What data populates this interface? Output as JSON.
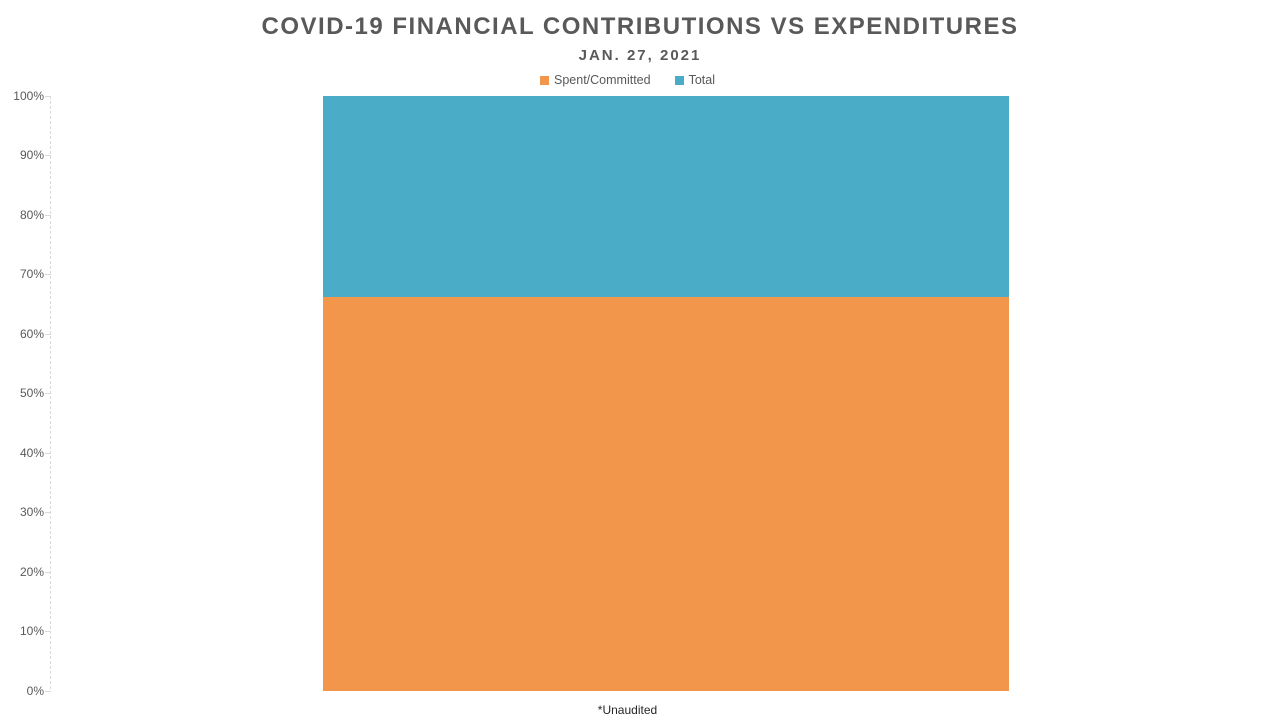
{
  "page": {
    "background": "#ffffff"
  },
  "header": {
    "title": "COVID-19 FINANCIAL CONTRIBUTIONS VS EXPENDITURES",
    "subtitle": "JAN. 27, 2021"
  },
  "legend": {
    "position": "top",
    "items": [
      {
        "label": "Spent/Committed",
        "color": "#F2964B"
      },
      {
        "label": "Total",
        "color": "#4AACC6"
      }
    ]
  },
  "chart_data": {
    "type": "bar",
    "subtype": "stacked-100-percent-column",
    "title": "COVID-19 FINANCIAL CONTRIBUTIONS VS EXPENDITURES",
    "subtitle": "JAN. 27, 2021",
    "categories": [
      "*Unaudited"
    ],
    "series": [
      {
        "name": "Spent/Committed",
        "values": [
          66.2
        ],
        "color": "#F2964B"
      },
      {
        "name": "Total",
        "values": [
          33.8
        ],
        "color": "#4AACC6"
      }
    ],
    "xlabel": "",
    "ylabel": "",
    "ylim": [
      0,
      100
    ],
    "yticks": [
      "100%",
      "90%",
      "80%",
      "70%",
      "60%",
      "50%",
      "40%",
      "30%",
      "20%",
      "10%",
      "0%"
    ],
    "grid": false,
    "legend_position": "top",
    "colors": {
      "axis_line": "#D9D9D9",
      "tick_text": "#595959",
      "title_text": "#595959",
      "category_text": "#262626"
    }
  }
}
